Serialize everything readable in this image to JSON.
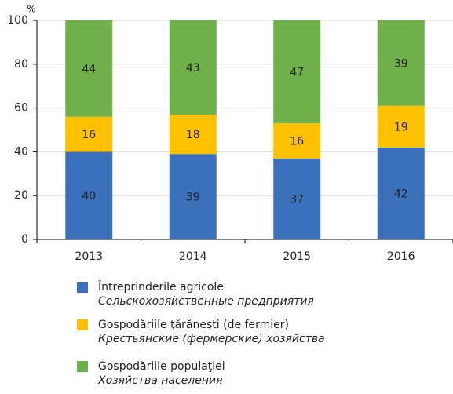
{
  "chart_data": {
    "type": "stacked_bar",
    "y_unit": "%",
    "categories": [
      "2013",
      "2014",
      "2015",
      "2016"
    ],
    "series": [
      {
        "name": "Întreprinderile agricole",
        "name_ru": "Сельскохозяйственные предприятия",
        "color": "#3b70ba",
        "values": [
          40,
          39,
          37,
          42
        ]
      },
      {
        "name": "Gospodăriile ţărăneşti (de fermier)",
        "name_ru": "Крестьянские (фермерские) хозяйства",
        "color": "#ffc000",
        "values": [
          16,
          18,
          16,
          19
        ]
      },
      {
        "name": "Gospodăriile populaţiei",
        "name_ru": "Хозяйства населения",
        "color": "#6fb04a",
        "values": [
          44,
          43,
          47,
          39
        ]
      }
    ],
    "ylim": [
      0,
      100
    ],
    "yticks": [
      0,
      20,
      40,
      60,
      80,
      100
    ],
    "grid": true
  }
}
